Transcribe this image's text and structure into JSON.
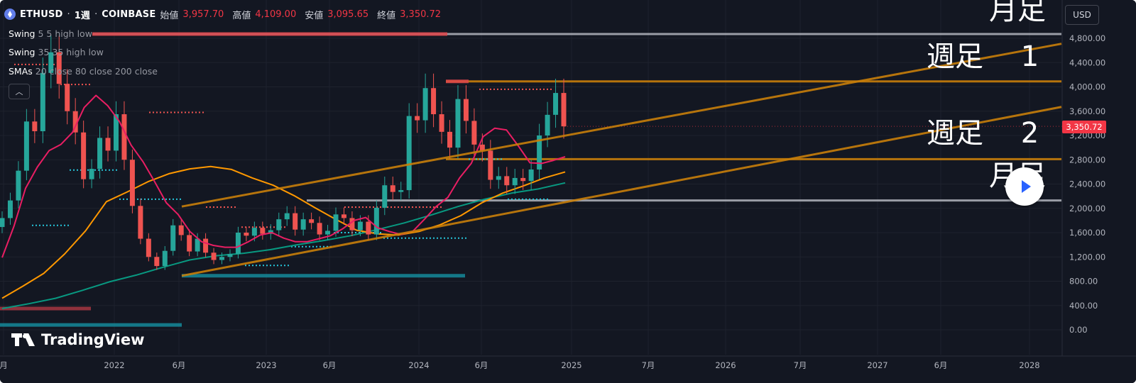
{
  "header": {
    "symbol": "ETHUSD",
    "interval": "1週",
    "exchange": "COINBASE",
    "open_label": "始値",
    "open": "3,957.70",
    "high_label": "高値",
    "high": "4,109.00",
    "low_label": "安値",
    "low": "3,095.65",
    "close_label": "終値",
    "close": "3,350.72"
  },
  "indicators": [
    {
      "name": "Swing",
      "params": "5 5 high low"
    },
    {
      "name": "Swing",
      "params": "35 35 high low"
    },
    {
      "name": "SMAs",
      "params": "20 close 80 close 200 close"
    }
  ],
  "collapse_icon": "chevron-up-icon",
  "currency": "USD",
  "last_price": "3,350.72",
  "brand": "TradingView",
  "annotations": {
    "monthly_top": "月足",
    "weekly_1": "週足　 1",
    "weekly_2": "週足　 2",
    "monthly_bottom": "月足"
  },
  "colors": {
    "background": "#131722",
    "up": "#26a69a",
    "down": "#ef5350",
    "sma20": "#e91e63",
    "sma80": "#ff9800",
    "sma200": "#089981",
    "trend": "#c87f0a",
    "level_white": "#b2b5be"
  },
  "chart_data": {
    "type": "candlestick",
    "timeframe": "weekly",
    "y_axis": {
      "ticks": [
        "4,800.00",
        "4,400.00",
        "4,000.00",
        "3,600.00",
        "3,200.00",
        "2,800.00",
        "2,400.00",
        "2,000.00",
        "1,600.00",
        "1,200.00",
        "800.00",
        "400.00",
        "0.00"
      ],
      "range": [
        -100,
        5000
      ]
    },
    "x_axis": {
      "ticks": [
        "月",
        "2022",
        "6月",
        "2023",
        "6月",
        "2024",
        "6月",
        "2025",
        "7月",
        "2026",
        "7月",
        "2027",
        "6月",
        "2028"
      ]
    },
    "close_series": [
      1840,
      2130,
      2620,
      3430,
      3270,
      4230,
      4570,
      4050,
      3600,
      3250,
      2480,
      2650,
      3160,
      2950,
      3550,
      2800,
      2040,
      1500,
      1200,
      1050,
      1300,
      1720,
      1560,
      1290,
      1500,
      1270,
      1150,
      1200,
      1250,
      1600,
      1550,
      1680,
      1580,
      1640,
      1820,
      1920,
      1650,
      1820,
      1760,
      1570,
      1630,
      1900,
      1840,
      1640,
      1780,
      1570,
      2010,
      2380,
      2270,
      2300,
      3520,
      3450,
      3980,
      3550,
      3260,
      3000,
      3800,
      3440,
      3050,
      2950,
      2470,
      2530,
      2380,
      2500,
      2450,
      2640,
      3200,
      3540,
      3900,
      3350
    ],
    "sma20_series": [
      1190,
      1700,
      2330,
      2680,
      2950,
      3050,
      3250,
      3660,
      3860,
      3690,
      3430,
      3040,
      2770,
      2440,
      2090,
      1900,
      1620,
      1450,
      1390,
      1360,
      1360,
      1450,
      1560,
      1600,
      1510,
      1450,
      1450,
      1500,
      1550,
      1660,
      1800,
      1850,
      1680,
      1620,
      1570,
      1620,
      1820,
      2030,
      2180,
      2500,
      2740,
      3180,
      3320,
      3290,
      3030,
      2750,
      2740,
      2790,
      2850
    ],
    "sma80_series": [
      520,
      720,
      930,
      1250,
      1630,
      2110,
      2270,
      2440,
      2570,
      2650,
      2690,
      2640,
      2500,
      2380,
      2210,
      2010,
      1820,
      1640,
      1580,
      1560,
      1620,
      1730,
      1880,
      2090,
      2250,
      2370,
      2500,
      2600
    ],
    "sma200_series": [
      350,
      430,
      520,
      650,
      790,
      900,
      1030,
      1150,
      1220,
      1260,
      1320,
      1400,
      1470,
      1550,
      1650,
      1760,
      1890,
      2030,
      2150,
      2250,
      2320,
      2420
    ],
    "levels": [
      {
        "label": "high",
        "value": 4870,
        "color": "white"
      },
      {
        "label": "resistance",
        "value": 4090,
        "color": "orange"
      },
      {
        "label": "support",
        "value": 2810,
        "color": "orange"
      },
      {
        "label": "low",
        "value": 2130,
        "color": "white"
      }
    ],
    "trend_lines": [
      {
        "from": [
          "2022-06",
          2030
        ],
        "to": [
          "2028-03",
          4710
        ]
      },
      {
        "from": [
          "2022-06",
          890
        ],
        "to": [
          "2028-03",
          3670
        ]
      }
    ],
    "last": 3350.72
  }
}
